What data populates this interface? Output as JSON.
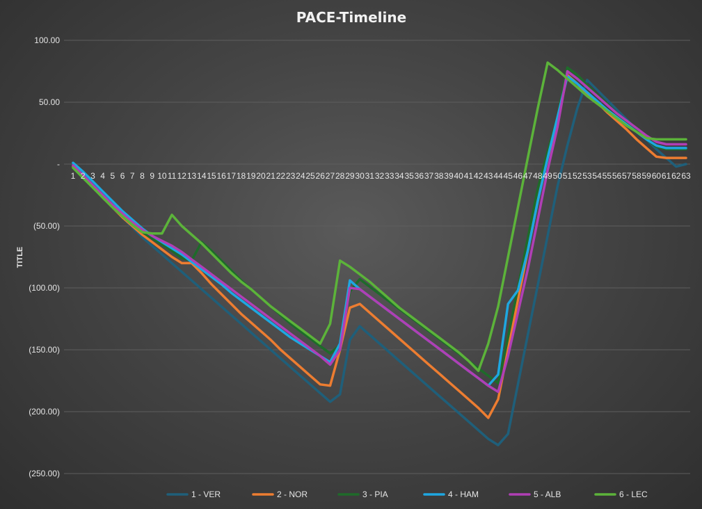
{
  "chart_data": {
    "type": "line",
    "title": "PACE-Timeline",
    "xlabel": "",
    "ylabel": "TITLE",
    "ylim": [
      -250,
      100
    ],
    "yticks": [
      100,
      50,
      0,
      -50,
      -100,
      -150,
      -200,
      -250
    ],
    "ytick_labels": [
      "100.00",
      "50.00",
      "-",
      "(50.00)",
      "(100.00)",
      "(150.00)",
      "(200.00)",
      "(250.00)"
    ],
    "x": [
      1,
      2,
      3,
      4,
      5,
      6,
      7,
      8,
      9,
      10,
      11,
      12,
      13,
      14,
      15,
      16,
      17,
      18,
      19,
      20,
      21,
      22,
      23,
      24,
      25,
      26,
      27,
      28,
      29,
      30,
      31,
      32,
      33,
      34,
      35,
      36,
      37,
      38,
      39,
      40,
      41,
      42,
      43,
      44,
      45,
      46,
      47,
      48,
      49,
      50,
      51,
      52,
      53,
      54,
      55,
      56,
      57,
      58,
      59,
      60,
      61,
      62,
      63
    ],
    "grid": true,
    "legend_position": "bottom",
    "series": [
      {
        "name": "1 - VER",
        "color": "#1f5f7a",
        "values": [
          0,
          -8,
          -17,
          -26,
          -35,
          -43,
          -51,
          -59,
          -66,
          -73,
          -80,
          -87,
          -94,
          -101,
          -108,
          -115,
          -122,
          -129,
          -136,
          -143,
          -150,
          -157,
          -164,
          -171,
          -178,
          -185,
          -192,
          -186,
          -142,
          -131,
          -138,
          -145,
          -152,
          -159,
          -166,
          -173,
          -180,
          -187,
          -194,
          -201,
          -208,
          -215,
          -222,
          -227,
          -218,
          -178,
          -138,
          -98,
          -58,
          -18,
          15,
          45,
          68,
          60,
          52,
          44,
          36,
          28,
          20,
          12,
          5,
          -2,
          0
        ]
      },
      {
        "name": "2 - NOR",
        "color": "#ed7d31",
        "values": [
          -2,
          -10,
          -18,
          -27,
          -35,
          -43,
          -50,
          -57,
          -63,
          -69,
          -75,
          -80,
          -80,
          -88,
          -97,
          -105,
          -113,
          -121,
          -128,
          -135,
          -142,
          -150,
          -157,
          -164,
          -171,
          -178,
          -179,
          -150,
          -116,
          -113,
          -120,
          -127,
          -134,
          -141,
          -148,
          -155,
          -162,
          -169,
          -176,
          -183,
          -190,
          -197,
          -205,
          -190,
          -150,
          -110,
          -70,
          -30,
          5,
          35,
          72,
          65,
          57,
          50,
          42,
          35,
          28,
          20,
          13,
          6,
          5,
          5,
          5
        ]
      },
      {
        "name": "3 - PIA",
        "color": "#1e6b2a",
        "values": [
          -3,
          -11,
          -19,
          -27,
          -35,
          -42,
          -49,
          -55,
          -60,
          -65,
          -70,
          -76,
          -78,
          -63,
          -70,
          -78,
          -86,
          -94,
          -101,
          -108,
          -115,
          -122,
          -129,
          -135,
          -141,
          -147,
          -153,
          -146,
          -103,
          -93,
          -99,
          -105,
          -111,
          -117,
          -123,
          -129,
          -135,
          -141,
          -147,
          -153,
          -159,
          -165,
          -171,
          -177,
          -140,
          -100,
          -60,
          -20,
          10,
          38,
          78,
          72,
          64,
          56,
          49,
          41,
          34,
          27,
          20,
          14,
          12,
          12,
          12
        ]
      },
      {
        "name": "4 - HAM",
        "color": "#1ea7e1",
        "values": [
          1,
          -6,
          -14,
          -22,
          -30,
          -38,
          -45,
          -52,
          -58,
          -63,
          -68,
          -73,
          -79,
          -85,
          -91,
          -97,
          -104,
          -110,
          -116,
          -122,
          -128,
          -134,
          -140,
          -145,
          -150,
          -155,
          -160,
          -145,
          -94,
          -101,
          -107,
          -113,
          -119,
          -125,
          -131,
          -137,
          -143,
          -149,
          -155,
          -161,
          -167,
          -173,
          -179,
          -170,
          -113,
          -102,
          -70,
          -30,
          5,
          38,
          71,
          65,
          58,
          51,
          44,
          38,
          32,
          26,
          20,
          15,
          13,
          13,
          13
        ]
      },
      {
        "name": "5 - ALB",
        "color": "#b03fb5",
        "values": [
          -1,
          -9,
          -17,
          -25,
          -33,
          -40,
          -47,
          -53,
          -58,
          -62,
          -66,
          -71,
          -77,
          -83,
          -89,
          -95,
          -101,
          -107,
          -113,
          -119,
          -125,
          -131,
          -137,
          -143,
          -149,
          -155,
          -162,
          -150,
          -100,
          -101,
          -107,
          -113,
          -119,
          -125,
          -131,
          -137,
          -143,
          -149,
          -155,
          -161,
          -167,
          -173,
          -179,
          -184,
          -155,
          -120,
          -85,
          -45,
          -5,
          30,
          75,
          69,
          62,
          55,
          48,
          41,
          35,
          29,
          23,
          18,
          16,
          16,
          16
        ]
      },
      {
        "name": "6 - LEC",
        "color": "#5cb33a",
        "values": [
          -3,
          -11,
          -19,
          -27,
          -35,
          -42,
          -49,
          -55,
          -56,
          -56,
          -41,
          -50,
          -57,
          -64,
          -72,
          -80,
          -88,
          -95,
          -101,
          -108,
          -115,
          -121,
          -127,
          -133,
          -139,
          -145,
          -129,
          -78,
          -83,
          -89,
          -95,
          -102,
          -109,
          -116,
          -122,
          -128,
          -134,
          -140,
          -146,
          -152,
          -159,
          -167,
          -145,
          -115,
          -75,
          -35,
          5,
          45,
          82,
          76,
          69,
          62,
          55,
          49,
          43,
          37,
          31,
          26,
          21,
          20,
          20,
          20,
          20
        ]
      }
    ]
  }
}
